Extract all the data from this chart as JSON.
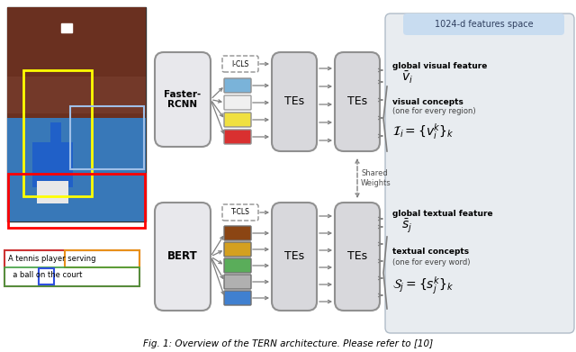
{
  "fig_width": 6.4,
  "fig_height": 3.91,
  "dpi": 100,
  "bg_color": "#ffffff",
  "feature_space_bg": "#e8ecf0",
  "feature_space_label": "1024-d features space",
  "feature_space_label_bg": "#c8dcf0",
  "faster_rcnn_label": "Faster-\nRCNN",
  "bert_label": "BERT",
  "tes_label": "TEs",
  "shared_weights_label": "Shared\nWeights",
  "global_visual_label": "global visual feature",
  "visual_concepts_label1": "visual concepts",
  "visual_concepts_label2": "(one for every region)",
  "visual_formula": "$\\mathcal{I}_i = \\{v_i^k\\}_k$",
  "global_visual_formula": "$\\bar{v}_i$",
  "global_textual_label": "global textual feature",
  "textual_concepts_label1": "textual concepts",
  "textual_concepts_label2": "(one for every word)",
  "textual_formula": "$\\mathcal{S}_j = \\{s_j^k\\}_k$",
  "global_textual_formula": "$\\bar{s}_j$",
  "i_cls_label": "I-CLS",
  "t_cls_label": "T-CLS",
  "visual_box_colors": [
    "#7ab3d9",
    "#f0f0f0",
    "#f0e040",
    "#d93030"
  ],
  "textual_box_colors": [
    "#8b4513",
    "#d4a020",
    "#5aad5a",
    "#b0b0b0",
    "#4080d0"
  ],
  "main_box_fc": "#e8e8ec",
  "main_box_ec": "#909090",
  "te_box_fc": "#d8d8dc",
  "te_box_ec": "#909090",
  "arrow_color": "#808080",
  "caption": "Fig. 1: Overview of the TERN architecture. Please refer to [10]",
  "img_colors": {
    "crowd_top": "#7a3a2a",
    "crowd_mid": "#6a2a1a",
    "court": "#4080c0",
    "player_shirt": "#2060c0",
    "player_shorts": "#f0f0f0",
    "shadow": "#303050"
  },
  "sent_text1": "A tennis player serving",
  "sent_text2": "  a ball on the court",
  "sent_box_color": "#cc3333",
  "sent_orange_color": "#e8901a",
  "sent_green_color": "#40a040",
  "sent_blue_color": "#3050e0"
}
